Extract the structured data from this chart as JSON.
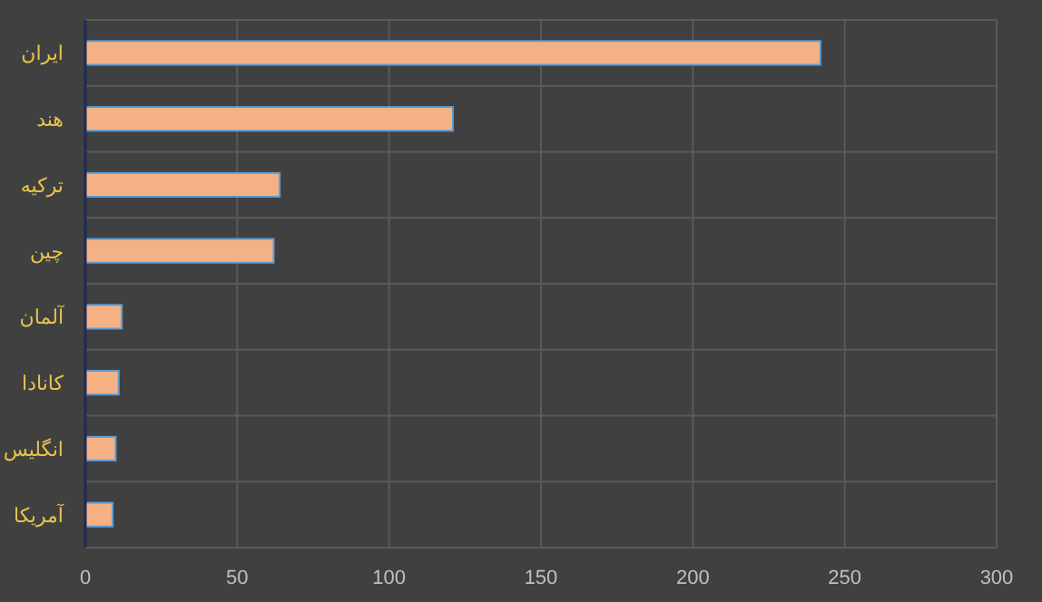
{
  "chart_data": {
    "type": "bar",
    "orientation": "horizontal",
    "categories": [
      "ایران",
      "هند",
      "ترکیه",
      "چین",
      "آلمان",
      "کانادا",
      "انگلیس",
      "آمریکا"
    ],
    "values": [
      242,
      121,
      64,
      62,
      12,
      11,
      10,
      9
    ],
    "color": "#f4b183",
    "xlim": [
      0,
      300
    ],
    "xticks": [
      0,
      50,
      100,
      150,
      200,
      250,
      300
    ],
    "grid": true
  }
}
